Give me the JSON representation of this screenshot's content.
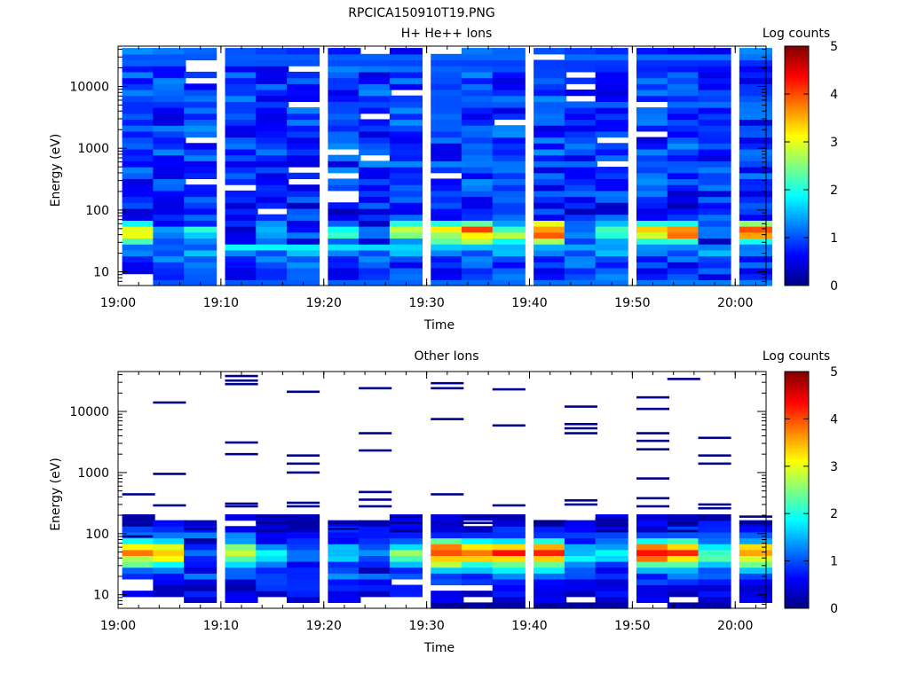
{
  "figure_title": "RPCICA150910T19.PNG",
  "chart_data": [
    {
      "type": "heatmap",
      "title": "H+ He++ Ions",
      "xlabel": "Time",
      "ylabel": "Energy (eV)",
      "x_ticks": [
        "19:00",
        "19:10",
        "19:20",
        "19:30",
        "19:40",
        "19:50",
        "20:00"
      ],
      "x_range": [
        "19:00",
        "20:03"
      ],
      "y_scale": "log",
      "y_ticks": [
        "10",
        "100",
        "1000",
        "10000"
      ],
      "y_range": [
        6,
        45000
      ],
      "colorbar": {
        "label": "Log counts",
        "ticks": [
          "0",
          "1",
          "2",
          "3",
          "4",
          "5"
        ],
        "range": [
          0,
          5
        ]
      },
      "time_columns": [
        "19:02",
        "19:05",
        "19:08",
        "19:12",
        "19:15",
        "19:18",
        "19:22",
        "19:25",
        "19:28",
        "19:32",
        "19:35",
        "19:38",
        "19:42",
        "19:45",
        "19:48",
        "19:52",
        "19:55",
        "19:58",
        "20:02"
      ],
      "energy_profile": {
        "energy_eV": [
          8,
          12,
          18,
          28,
          42,
          55,
          70,
          100,
          150,
          300,
          1000,
          3000,
          10000,
          40000
        ],
        "log_counts": [
          0.9,
          0.9,
          1.1,
          1.6,
          3.4,
          3.1,
          1.0,
          0.6,
          0.8,
          0.9,
          0.9,
          0.9,
          0.9,
          0.9
        ]
      },
      "low_energy_peak_per_column": [
        3.0,
        1.2,
        1.8,
        0.8,
        1.9,
        0.9,
        2.1,
        1.2,
        2.8,
        3.1,
        3.9,
        2.7,
        4.1,
        1.4,
        2.4,
        3.5,
        3.7,
        1.0,
        3.8
      ]
    },
    {
      "type": "heatmap",
      "title": "Other Ions",
      "xlabel": "Time",
      "ylabel": "Energy (eV)",
      "x_ticks": [
        "19:00",
        "19:10",
        "19:20",
        "19:30",
        "19:40",
        "19:50",
        "20:00"
      ],
      "x_range": [
        "19:00",
        "20:03"
      ],
      "y_scale": "log",
      "y_ticks": [
        "10",
        "100",
        "1000",
        "10000"
      ],
      "y_range": [
        6,
        45000
      ],
      "colorbar": {
        "label": "Log counts",
        "ticks": [
          "0",
          "1",
          "2",
          "3",
          "4",
          "5"
        ],
        "range": [
          0,
          5
        ]
      },
      "time_columns": [
        "19:02",
        "19:05",
        "19:08",
        "19:12",
        "19:15",
        "19:18",
        "19:22",
        "19:25",
        "19:28",
        "19:32",
        "19:35",
        "19:38",
        "19:42",
        "19:45",
        "19:48",
        "19:52",
        "19:55",
        "19:58",
        "20:02"
      ],
      "energy_profile": {
        "energy_eV": [
          8,
          12,
          18,
          28,
          42,
          55,
          70,
          100,
          150,
          200
        ],
        "log_counts": [
          0.4,
          0.5,
          0.8,
          1.6,
          3.2,
          3.8,
          2.0,
          0.8,
          0.4,
          0.2
        ]
      },
      "peak_per_column": [
        3.8,
        3.9,
        1.4,
        3.0,
        1.8,
        1.6,
        1.8,
        1.4,
        2.6,
        4.6,
        4.2,
        4.6,
        4.3,
        2.0,
        2.2,
        4.6,
        4.3,
        2.7,
        4.0
      ],
      "high_energy_lines_eV": [
        [
          440,
          140,
          90
        ],
        [
          14000,
          950,
          290
        ],
        [
          120,
          80
        ],
        [
          38000,
          32000,
          28000,
          3100,
          2000,
          310,
          280
        ],
        [
          190,
          150,
          110
        ],
        [
          21000,
          1900,
          1400,
          1000,
          320,
          280
        ],
        [
          150,
          120
        ],
        [
          24000,
          4400,
          2300,
          480,
          360,
          280
        ],
        [
          190,
          150,
          110
        ],
        [
          29000,
          24000,
          7500,
          440
        ],
        [
          190,
          150
        ],
        [
          23000,
          5900,
          290
        ],
        [
          160,
          140
        ],
        [
          12000,
          6200,
          5300,
          4400,
          350,
          300
        ],
        [
          170,
          140,
          110
        ],
        [
          17000,
          11000,
          4400,
          3300,
          2400,
          800,
          380,
          280
        ],
        [
          34000,
          150,
          110
        ],
        [
          3700,
          1900,
          1400,
          300,
          260
        ],
        [
          190,
          150
        ]
      ]
    }
  ]
}
